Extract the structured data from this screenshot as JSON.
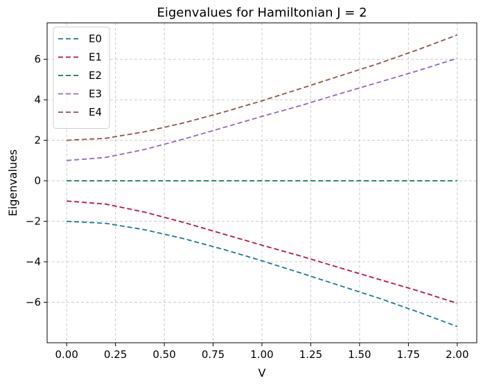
{
  "chart_data": {
    "type": "line",
    "title": "Eigenvalues for Hamiltonian J = 2",
    "xlabel": "V",
    "ylabel": "Eigenvalues",
    "x": [
      0.0,
      0.2,
      0.4,
      0.6,
      0.8,
      1.0,
      1.2,
      1.4,
      1.6,
      1.8,
      2.0
    ],
    "xlim": [
      -0.1,
      2.1
    ],
    "ylim": [
      -8.0,
      7.8
    ],
    "xticks": [
      0.0,
      0.25,
      0.5,
      0.75,
      1.0,
      1.25,
      1.5,
      1.75,
      2.0
    ],
    "xtick_labels": [
      "0.00",
      "0.25",
      "0.50",
      "0.75",
      "1.00",
      "1.25",
      "1.50",
      "1.75",
      "2.00"
    ],
    "yticks": [
      -6,
      -4,
      -2,
      0,
      2,
      4,
      6
    ],
    "ytick_labels": [
      "−6",
      "−4",
      "−2",
      "0",
      "2",
      "4",
      "6"
    ],
    "grid": true,
    "legend": "top-left",
    "line_style": "dashed",
    "series": [
      {
        "name": "E0",
        "color": "#1a7a99",
        "values": [
          -2.0,
          -2.1,
          -2.42,
          -2.86,
          -3.38,
          -3.95,
          -4.56,
          -5.18,
          -5.8,
          -6.48,
          -7.2
        ]
      },
      {
        "name": "E1",
        "color": "#c0103c",
        "values": [
          -1.0,
          -1.15,
          -1.55,
          -2.06,
          -2.62,
          -3.18,
          -3.72,
          -4.3,
          -4.87,
          -5.44,
          -6.05
        ]
      },
      {
        "name": "E2",
        "color": "#0e7a46",
        "values": [
          0,
          0,
          0,
          0,
          0,
          0,
          0,
          0,
          0,
          0,
          0
        ]
      },
      {
        "name": "E3",
        "color": "#9467bd",
        "values": [
          1.0,
          1.15,
          1.55,
          2.06,
          2.62,
          3.18,
          3.72,
          4.3,
          4.87,
          5.44,
          6.05
        ]
      },
      {
        "name": "E4",
        "color": "#8c564b",
        "values": [
          2.0,
          2.1,
          2.42,
          2.86,
          3.38,
          3.95,
          4.56,
          5.18,
          5.8,
          6.48,
          7.2
        ]
      }
    ]
  }
}
